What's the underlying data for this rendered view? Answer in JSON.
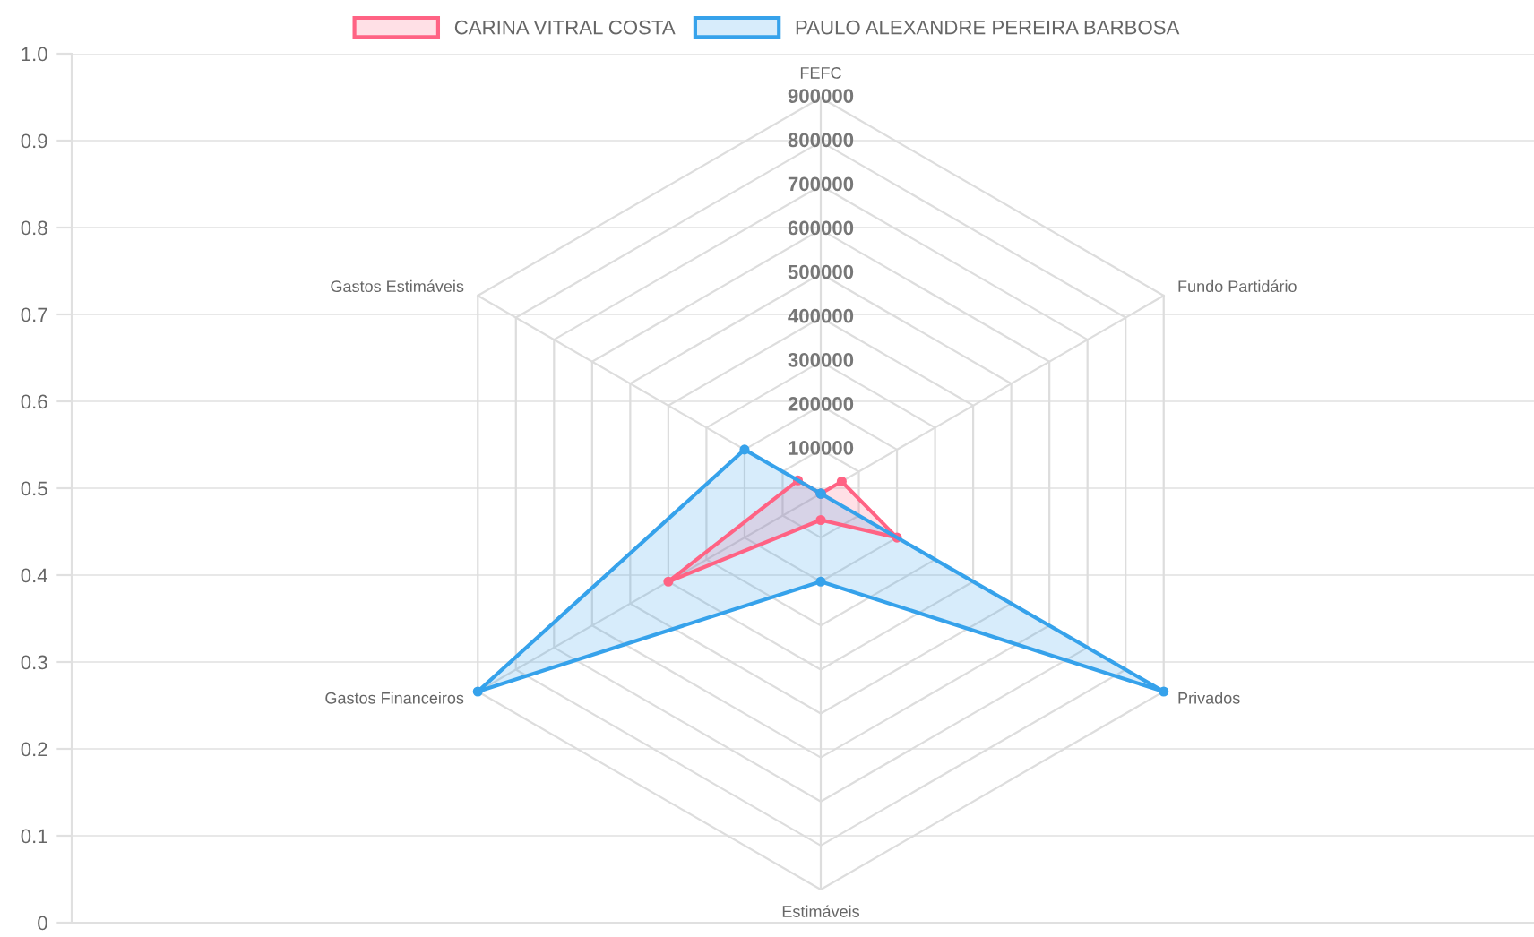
{
  "chart_data": [
    {
      "type": "radar",
      "categories": [
        "FEFC",
        "Fundo Partidário",
        "Privados",
        "Estimáveis",
        "Gastos Financeiros",
        "Gastos Estimáveis"
      ],
      "series": [
        {
          "name": "CARINA VITRAL COSTA",
          "color": "#ff6384",
          "values": [
            0,
            55000,
            200000,
            60000,
            400000,
            60000
          ]
        },
        {
          "name": "PAULO ALEXANDRE PEREIRA BARBOSA",
          "color": "#36a2eb",
          "values": [
            0,
            0,
            900000,
            200000,
            900000,
            200000
          ]
        }
      ],
      "ylim": [
        0,
        900000
      ],
      "yticks": [
        100000,
        200000,
        300000,
        400000,
        500000,
        600000,
        700000,
        800000,
        900000
      ],
      "grid": true,
      "legend": "top",
      "marker": "circle",
      "line_style": "solid"
    },
    {
      "type": "line",
      "categories": [
        null
      ],
      "ylim": [
        0,
        1
      ],
      "yticks": [
        0,
        0.1,
        0.2,
        0.3,
        0.4,
        0.5,
        0.6,
        0.7,
        0.8,
        0.9,
        {
          "value": 1,
          "label": "1.0"
        }
      ],
      "grid": "y",
      "tick_labels": "y"
    }
  ]
}
